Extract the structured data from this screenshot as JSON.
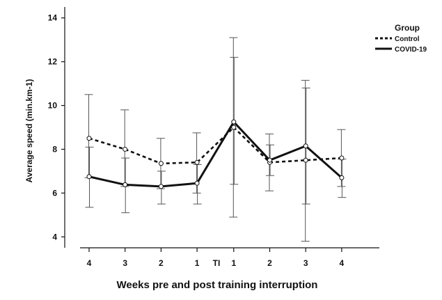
{
  "chart_data": {
    "type": "line",
    "xlabel": "Weeks pre and post training interruption",
    "ylabel": "Average speed (min.km-1)",
    "categories": [
      "4",
      "3",
      "2",
      "1",
      "1",
      "2",
      "3",
      "4"
    ],
    "annotation": "TI",
    "ylim": [
      3.5,
      14.5
    ],
    "yticks": [
      "4",
      "6",
      "8",
      "10",
      "12",
      "14"
    ],
    "grid": false,
    "legend": {
      "title": "Group",
      "placement": "top-right"
    },
    "series": [
      {
        "name": "Control",
        "style": "dashed",
        "values": [
          8.5,
          8.0,
          7.35,
          7.4,
          9.0,
          7.4,
          7.5,
          7.6
        ],
        "error_low": [
          6.7,
          6.3,
          6.2,
          6.0,
          4.9,
          6.1,
          3.8,
          6.3
        ],
        "error_high": [
          10.5,
          9.8,
          8.5,
          8.75,
          13.1,
          8.7,
          11.15,
          8.9
        ]
      },
      {
        "name": "COVID-19",
        "style": "solid",
        "values": [
          6.75,
          6.38,
          6.3,
          6.45,
          9.25,
          7.5,
          8.15,
          6.7
        ],
        "error_low": [
          5.35,
          5.1,
          5.5,
          5.5,
          6.4,
          6.8,
          5.5,
          5.8
        ],
        "error_high": [
          8.1,
          7.6,
          7.0,
          7.3,
          12.2,
          8.2,
          10.8,
          7.55
        ]
      }
    ]
  }
}
